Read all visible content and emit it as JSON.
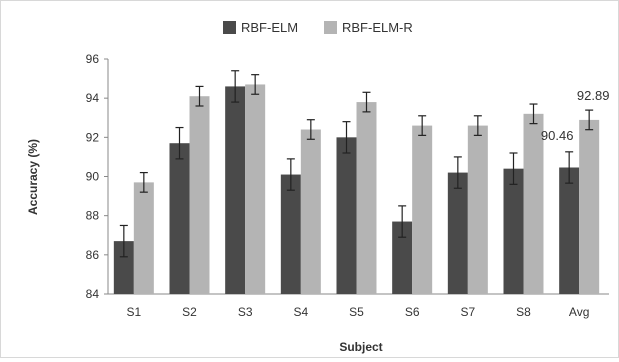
{
  "chart_data": {
    "type": "bar",
    "title": "",
    "xlabel": "Subject",
    "ylabel": "Accuracy (%)",
    "categories": [
      "S1",
      "S2",
      "S3",
      "S4",
      "S5",
      "S6",
      "S7",
      "S8",
      "Avg"
    ],
    "ylim": [
      84,
      96
    ],
    "yticks": [
      "84",
      "86",
      "88",
      "90",
      "92",
      "94",
      "96"
    ],
    "grid": false,
    "legend": "top-center",
    "series": [
      {
        "name": "RBF-ELM",
        "color": "#4a4a4a",
        "values": [
          86.7,
          91.7,
          94.6,
          90.1,
          92.0,
          87.7,
          90.2,
          90.4,
          90.46
        ],
        "errors": [
          0.8,
          0.8,
          0.8,
          0.8,
          0.8,
          0.8,
          0.8,
          0.8,
          0.8
        ]
      },
      {
        "name": "RBF-ELM-R",
        "color": "#b4b4b4",
        "values": [
          89.7,
          94.1,
          94.7,
          92.4,
          93.8,
          92.6,
          92.6,
          93.2,
          92.89
        ],
        "errors": [
          0.5,
          0.5,
          0.5,
          0.5,
          0.5,
          0.5,
          0.5,
          0.5,
          0.5
        ]
      }
    ],
    "annotations": [
      "90.46",
      "92.89"
    ]
  }
}
